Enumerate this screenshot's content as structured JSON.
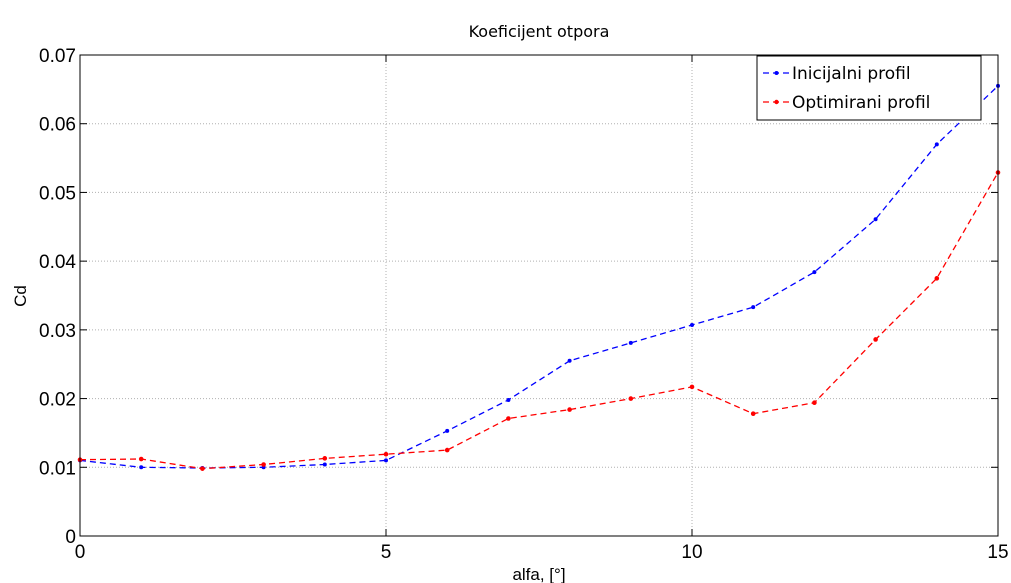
{
  "chart_data": {
    "type": "line",
    "title": "Koeficijent otpora",
    "xlabel": "alfa, [°]",
    "ylabel": "Cd",
    "xlim": [
      0,
      15
    ],
    "ylim": [
      0,
      0.07
    ],
    "xticks": [
      0,
      5,
      10,
      15
    ],
    "xtick_labels": [
      "0",
      "5",
      "10",
      "15"
    ],
    "yticks": [
      0,
      0.01,
      0.02,
      0.03,
      0.04,
      0.05,
      0.06,
      0.07
    ],
    "ytick_labels": [
      "0",
      "0.01",
      "0.02",
      "0.03",
      "0.04",
      "0.05",
      "0.06",
      "0.07"
    ],
    "grid": true,
    "legend_position": "top-right",
    "x": [
      0,
      1,
      2,
      3,
      4,
      5,
      6,
      7,
      8,
      9,
      10,
      11,
      12,
      13,
      14,
      15
    ],
    "series": [
      {
        "name": "Inicijalni profil",
        "color": "#0000ff",
        "values": [
          0.011,
          0.01,
          0.0099,
          0.01,
          0.0104,
          0.011,
          0.0153,
          0.0198,
          0.0255,
          0.0281,
          0.0307,
          0.0333,
          0.0384,
          0.0461,
          0.057,
          0.0655
        ]
      },
      {
        "name": "Optimirani profil",
        "color": "#ff0000",
        "values": [
          0.0111,
          0.0112,
          0.0098,
          0.0104,
          0.0113,
          0.0119,
          0.0125,
          0.0171,
          0.0184,
          0.02,
          0.0217,
          0.0178,
          0.0194,
          0.0286,
          0.0375,
          0.0529
        ]
      }
    ]
  }
}
